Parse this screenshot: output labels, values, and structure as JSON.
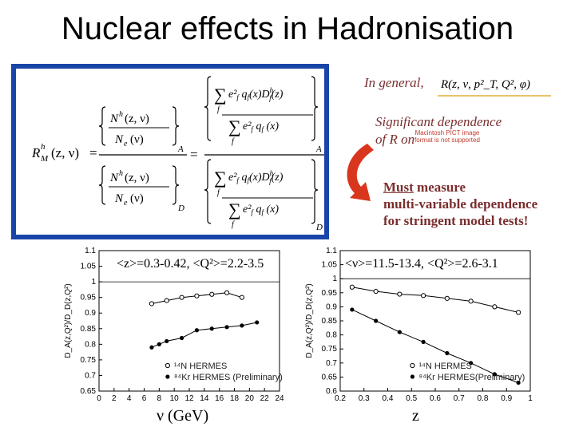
{
  "title": "Nuclear effects in Hadronisation",
  "notes": {
    "in_general": "In general,",
    "significant": "Significant dependence",
    "of_r_on": "of  R on",
    "placeholder_image": "Macintosh PICT image format is not supported",
    "must": "Must",
    "measure": " measure",
    "line2": "multi-variable dependence",
    "line3": "for stringent model tests!"
  },
  "formula": {
    "lhs": "R",
    "lhs_super": "h",
    "lhs_sub": "M",
    "lhs_args": "(z, ν)",
    "nh": "N",
    "nh_super": "h",
    "nh_args": "(z, ν)",
    "ne": "N",
    "ne_sub": "e",
    "ne_args": "(ν)",
    "sub_a": "A",
    "sub_d": "D",
    "rhs_short": "R(z, ν, p²_T, Q², φ)"
  },
  "colors": {
    "panel_border": "#1a45a8",
    "note_text": "#7a2e2e",
    "arrow": "#d9361e"
  },
  "plot_left": {
    "label": "<z>=0.3-0.42, <Q²>=2.2-3.5",
    "xlabel": "ν (GeV)",
    "yaxis_label": "D_A(z,Q²)/D_D(z,Q²)",
    "legend": [
      "¹⁴N HERMES",
      "⁸⁴Kr HERMES (Preliminary)"
    ]
  },
  "plot_right": {
    "label": "<ν>=11.5-13.4, <Q²>=2.6-3.1",
    "xlabel": "z",
    "yaxis_label": "D_A(z,Q²)/D_D(z,Q²)",
    "legend": [
      "¹⁴N HERMES",
      "⁸⁴Kr HERMES(Preliminary)"
    ]
  },
  "chart_data": [
    {
      "type": "scatter",
      "x_ticks": [
        "0",
        "2",
        "4",
        "6",
        "8",
        "10",
        "12",
        "14",
        "16",
        "18",
        "20",
        "22",
        "24"
      ],
      "y_ticks": [
        "0.65",
        "0.7",
        "0.75",
        "0.8",
        "0.85",
        "0.9",
        "0.95",
        "1",
        "1.05",
        "1.1"
      ],
      "xlim": [
        0,
        24
      ],
      "ylim": [
        0.65,
        1.1
      ],
      "series": [
        {
          "name": "¹⁴N HERMES",
          "x": [
            7,
            9,
            11,
            13,
            15,
            17,
            19
          ],
          "y": [
            0.93,
            0.94,
            0.95,
            0.955,
            0.96,
            0.965,
            0.95
          ]
        },
        {
          "name": "⁸⁴Kr HERMES (Preliminary)",
          "x": [
            7,
            8,
            9,
            11,
            13,
            15,
            17,
            19,
            21
          ],
          "y": [
            0.79,
            0.8,
            0.81,
            0.82,
            0.845,
            0.85,
            0.855,
            0.86,
            0.87
          ]
        }
      ]
    },
    {
      "type": "scatter",
      "x_ticks": [
        "0.2",
        "0.3",
        "0.4",
        "0.5",
        "0.6",
        "0.7",
        "0.8",
        "0.9",
        "1"
      ],
      "y_ticks": [
        "0.6",
        "0.65",
        "0.7",
        "0.75",
        "0.8",
        "0.85",
        "0.9",
        "0.95",
        "1",
        "1.05",
        "1.1"
      ],
      "xlim": [
        0.2,
        1.0
      ],
      "ylim": [
        0.6,
        1.1
      ],
      "series": [
        {
          "name": "¹⁴N HERMES",
          "x": [
            0.25,
            0.35,
            0.45,
            0.55,
            0.65,
            0.75,
            0.85,
            0.95
          ],
          "y": [
            0.97,
            0.955,
            0.945,
            0.94,
            0.93,
            0.92,
            0.9,
            0.88
          ]
        },
        {
          "name": "⁸⁴Kr HERMES(Preliminary)",
          "x": [
            0.25,
            0.35,
            0.45,
            0.55,
            0.65,
            0.75,
            0.85,
            0.95
          ],
          "y": [
            0.89,
            0.85,
            0.81,
            0.775,
            0.735,
            0.7,
            0.66,
            0.63
          ]
        }
      ]
    }
  ]
}
